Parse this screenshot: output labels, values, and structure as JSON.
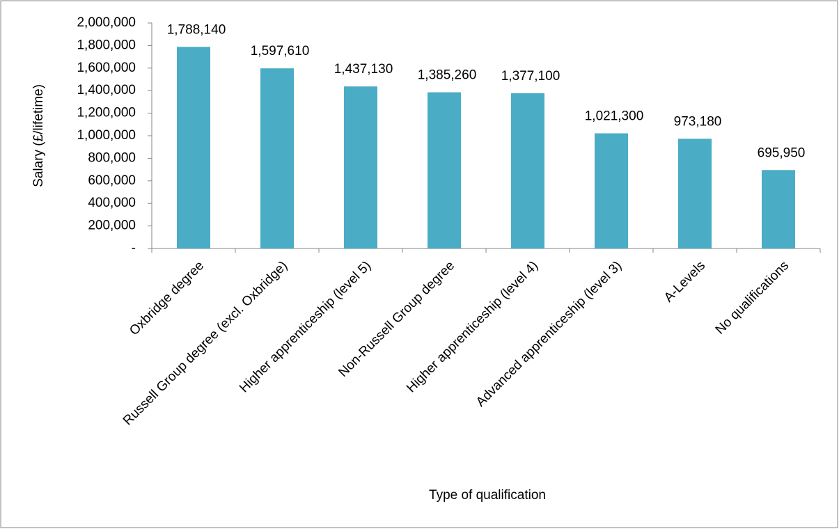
{
  "chart_data": {
    "type": "bar",
    "x_label": "Type of qualification",
    "y_label": "Salary (£/lifetime)",
    "categories": [
      "Oxbridge degree",
      "Russell Group degree (excl. Oxbridge)",
      "Higher apprenticeship (level 5)",
      "Non-Russell Group degree",
      "Higher apprenticeship (level 4)",
      "Advanced apprenticeship (level 3)",
      "A-Levels",
      "No qualifications"
    ],
    "values": [
      1788140,
      1597610,
      1437130,
      1385260,
      1377100,
      1021300,
      973180,
      695950
    ],
    "value_labels": [
      "1,788,140",
      "1,597,610",
      "1,437,130",
      "1,385,260",
      "1,377,100",
      "1,021,300",
      "973,180",
      "695,950"
    ],
    "color": "#4bacc6",
    "ylim": [
      0,
      2000000
    ],
    "yticks": [
      {
        "value": 0,
        "label": "-"
      },
      {
        "value": 200000,
        "label": "200,000"
      },
      {
        "value": 400000,
        "label": "400,000"
      },
      {
        "value": 600000,
        "label": "600,000"
      },
      {
        "value": 800000,
        "label": "800,000"
      },
      {
        "value": 1000000,
        "label": "1,000,000"
      },
      {
        "value": 1200000,
        "label": "1,200,000"
      },
      {
        "value": 1400000,
        "label": "1,400,000"
      },
      {
        "value": 1600000,
        "label": "1,600,000"
      },
      {
        "value": 1800000,
        "label": "1,800,000"
      },
      {
        "value": 2000000,
        "label": "2,000,000"
      }
    ],
    "grid": false
  }
}
